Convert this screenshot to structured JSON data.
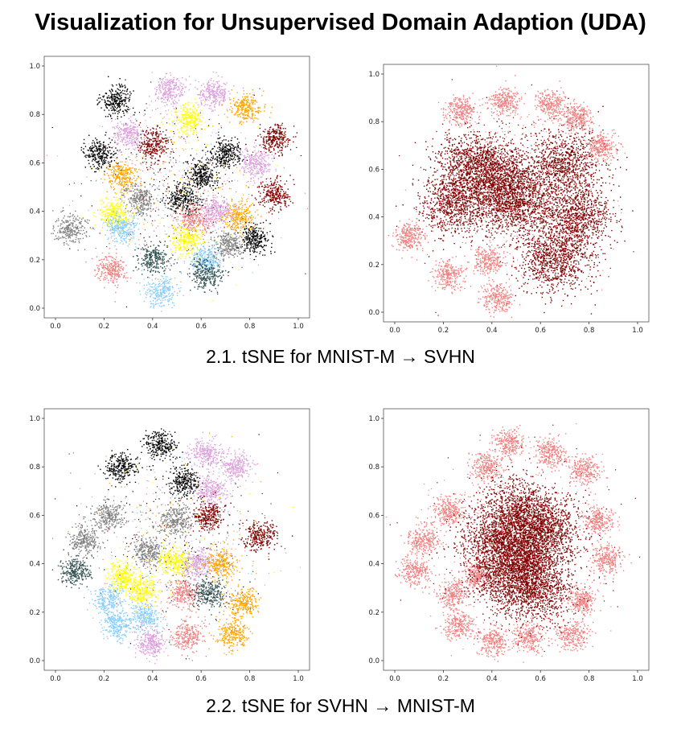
{
  "title": "Visualization for Unsupervised Domain Adaption (UDA)",
  "sections": [
    {
      "caption": "2.1. tSNE for MNIST-M → SVHN"
    },
    {
      "caption": "2.2. tSNE for SVHN → MNIST-M"
    }
  ],
  "chart_data": [
    {
      "type": "scatter",
      "panel": "2.1 left (class-colored)",
      "xlim": [
        0,
        1
      ],
      "ylim": [
        0,
        1
      ],
      "xticks": [
        "0.0",
        "0.2",
        "0.4",
        "0.6",
        "0.8",
        "1.0"
      ],
      "yticks": [
        "0.0",
        "0.2",
        "0.4",
        "0.6",
        "0.8",
        "1.0"
      ],
      "grid": false,
      "point_colors": [
        "#000000",
        "#dda0dd",
        "#ffff00",
        "#ffa500",
        "#800000",
        "#808080",
        "#87cefa",
        "#f08080",
        "#2f4f4f"
      ],
      "clusters": [
        {
          "x": 0.25,
          "y": 0.86,
          "color": "#000000"
        },
        {
          "x": 0.47,
          "y": 0.9,
          "color": "#dda0dd"
        },
        {
          "x": 0.65,
          "y": 0.89,
          "color": "#dda0dd"
        },
        {
          "x": 0.78,
          "y": 0.83,
          "color": "#ffa500"
        },
        {
          "x": 0.55,
          "y": 0.78,
          "color": "#ffff00"
        },
        {
          "x": 0.9,
          "y": 0.7,
          "color": "#800000"
        },
        {
          "x": 0.4,
          "y": 0.68,
          "color": "#800000"
        },
        {
          "x": 0.18,
          "y": 0.64,
          "color": "#000000"
        },
        {
          "x": 0.3,
          "y": 0.72,
          "color": "#dda0dd"
        },
        {
          "x": 0.7,
          "y": 0.64,
          "color": "#000000"
        },
        {
          "x": 0.82,
          "y": 0.6,
          "color": "#dda0dd"
        },
        {
          "x": 0.27,
          "y": 0.55,
          "color": "#ffa500"
        },
        {
          "x": 0.9,
          "y": 0.47,
          "color": "#800000"
        },
        {
          "x": 0.6,
          "y": 0.55,
          "color": "#000000"
        },
        {
          "x": 0.75,
          "y": 0.38,
          "color": "#ffa500"
        },
        {
          "x": 0.52,
          "y": 0.45,
          "color": "#000000"
        },
        {
          "x": 0.35,
          "y": 0.45,
          "color": "#808080"
        },
        {
          "x": 0.24,
          "y": 0.39,
          "color": "#ffff00"
        },
        {
          "x": 0.57,
          "y": 0.37,
          "color": "#f08080"
        },
        {
          "x": 0.66,
          "y": 0.4,
          "color": "#dda0dd"
        },
        {
          "x": 0.06,
          "y": 0.33,
          "color": "#808080"
        },
        {
          "x": 0.27,
          "y": 0.33,
          "color": "#87cefa"
        },
        {
          "x": 0.54,
          "y": 0.28,
          "color": "#ffff00"
        },
        {
          "x": 0.71,
          "y": 0.26,
          "color": "#808080"
        },
        {
          "x": 0.4,
          "y": 0.21,
          "color": "#2f4f4f"
        },
        {
          "x": 0.62,
          "y": 0.2,
          "color": "#87cefa"
        },
        {
          "x": 0.82,
          "y": 0.29,
          "color": "#000000"
        },
        {
          "x": 0.23,
          "y": 0.16,
          "color": "#f08080"
        },
        {
          "x": 0.62,
          "y": 0.14,
          "color": "#2f4f4f"
        },
        {
          "x": 0.43,
          "y": 0.07,
          "color": "#87cefa"
        }
      ]
    },
    {
      "type": "scatter",
      "panel": "2.1 right (domain-colored)",
      "xlim": [
        0,
        1
      ],
      "ylim": [
        0,
        1
      ],
      "xticks": [
        "0.0",
        "0.2",
        "0.4",
        "0.6",
        "0.8",
        "1.0"
      ],
      "yticks": [
        "0.0",
        "0.2",
        "0.4",
        "0.6",
        "0.8",
        "1.0"
      ],
      "grid": false,
      "point_colors": [
        "#800000",
        "#f08080"
      ],
      "clusters": [
        {
          "x": 0.5,
          "y": 0.46,
          "color": "#800000"
        },
        {
          "x": 0.32,
          "y": 0.62,
          "color": "#800000"
        },
        {
          "x": 0.7,
          "y": 0.62,
          "color": "#800000"
        },
        {
          "x": 0.25,
          "y": 0.46,
          "color": "#800000"
        },
        {
          "x": 0.75,
          "y": 0.4,
          "color": "#800000"
        },
        {
          "x": 0.65,
          "y": 0.22,
          "color": "#800000"
        },
        {
          "x": 0.44,
          "y": 0.56,
          "color": "#800000"
        },
        {
          "x": 0.27,
          "y": 0.85,
          "color": "#f08080"
        },
        {
          "x": 0.45,
          "y": 0.89,
          "color": "#f08080"
        },
        {
          "x": 0.64,
          "y": 0.87,
          "color": "#f08080"
        },
        {
          "x": 0.75,
          "y": 0.82,
          "color": "#f08080"
        },
        {
          "x": 0.85,
          "y": 0.69,
          "color": "#f08080"
        },
        {
          "x": 0.06,
          "y": 0.32,
          "color": "#f08080"
        },
        {
          "x": 0.22,
          "y": 0.16,
          "color": "#f08080"
        },
        {
          "x": 0.38,
          "y": 0.22,
          "color": "#f08080"
        },
        {
          "x": 0.42,
          "y": 0.06,
          "color": "#f08080"
        }
      ]
    },
    {
      "type": "scatter",
      "panel": "2.2 left (class-colored)",
      "xlim": [
        0,
        1
      ],
      "ylim": [
        0,
        1
      ],
      "xticks": [
        "0.0",
        "0.2",
        "0.4",
        "0.6",
        "0.8",
        "1.0"
      ],
      "yticks": [
        "0.0",
        "0.2",
        "0.4",
        "0.6",
        "0.8",
        "1.0"
      ],
      "grid": false,
      "point_colors": [
        "#000000",
        "#dda0dd",
        "#ffff00",
        "#ffa500",
        "#800000",
        "#808080",
        "#87cefa",
        "#f08080",
        "#2f4f4f"
      ],
      "clusters": [
        {
          "x": 0.27,
          "y": 0.8,
          "color": "#000000"
        },
        {
          "x": 0.43,
          "y": 0.89,
          "color": "#000000"
        },
        {
          "x": 0.62,
          "y": 0.86,
          "color": "#dda0dd"
        },
        {
          "x": 0.74,
          "y": 0.8,
          "color": "#dda0dd"
        },
        {
          "x": 0.53,
          "y": 0.74,
          "color": "#000000"
        },
        {
          "x": 0.64,
          "y": 0.7,
          "color": "#dda0dd"
        },
        {
          "x": 0.84,
          "y": 0.52,
          "color": "#800000"
        },
        {
          "x": 0.22,
          "y": 0.6,
          "color": "#808080"
        },
        {
          "x": 0.12,
          "y": 0.5,
          "color": "#808080"
        },
        {
          "x": 0.49,
          "y": 0.58,
          "color": "#808080"
        },
        {
          "x": 0.63,
          "y": 0.6,
          "color": "#800000"
        },
        {
          "x": 0.38,
          "y": 0.45,
          "color": "#808080"
        },
        {
          "x": 0.08,
          "y": 0.37,
          "color": "#2f4f4f"
        },
        {
          "x": 0.49,
          "y": 0.41,
          "color": "#ffff00"
        },
        {
          "x": 0.59,
          "y": 0.4,
          "color": "#dda0dd"
        },
        {
          "x": 0.68,
          "y": 0.4,
          "color": "#ffa500"
        },
        {
          "x": 0.27,
          "y": 0.35,
          "color": "#ffff00"
        },
        {
          "x": 0.35,
          "y": 0.29,
          "color": "#ffff00"
        },
        {
          "x": 0.53,
          "y": 0.28,
          "color": "#f08080"
        },
        {
          "x": 0.63,
          "y": 0.28,
          "color": "#2f4f4f"
        },
        {
          "x": 0.22,
          "y": 0.25,
          "color": "#87cefa"
        },
        {
          "x": 0.37,
          "y": 0.18,
          "color": "#87cefa"
        },
        {
          "x": 0.77,
          "y": 0.24,
          "color": "#ffa500"
        },
        {
          "x": 0.25,
          "y": 0.15,
          "color": "#87cefa"
        },
        {
          "x": 0.39,
          "y": 0.07,
          "color": "#dda0dd"
        },
        {
          "x": 0.54,
          "y": 0.1,
          "color": "#f08080"
        },
        {
          "x": 0.73,
          "y": 0.11,
          "color": "#ffa500"
        }
      ]
    },
    {
      "type": "scatter",
      "panel": "2.2 right (domain-colored)",
      "xlim": [
        0,
        1
      ],
      "ylim": [
        0,
        1
      ],
      "xticks": [
        "0.0",
        "0.2",
        "0.4",
        "0.6",
        "0.8",
        "1.0"
      ],
      "yticks": [
        "0.0",
        "0.2",
        "0.4",
        "0.6",
        "0.8",
        "1.0"
      ],
      "grid": false,
      "point_colors": [
        "#f08080",
        "#800000"
      ],
      "clusters": [
        {
          "x": 0.37,
          "y": 0.8,
          "color": "#f08080"
        },
        {
          "x": 0.47,
          "y": 0.9,
          "color": "#f08080"
        },
        {
          "x": 0.64,
          "y": 0.86,
          "color": "#f08080"
        },
        {
          "x": 0.78,
          "y": 0.79,
          "color": "#f08080"
        },
        {
          "x": 0.22,
          "y": 0.62,
          "color": "#f08080"
        },
        {
          "x": 0.12,
          "y": 0.5,
          "color": "#f08080"
        },
        {
          "x": 0.83,
          "y": 0.58,
          "color": "#f08080"
        },
        {
          "x": 0.87,
          "y": 0.42,
          "color": "#f08080"
        },
        {
          "x": 0.08,
          "y": 0.37,
          "color": "#f08080"
        },
        {
          "x": 0.24,
          "y": 0.28,
          "color": "#f08080"
        },
        {
          "x": 0.77,
          "y": 0.25,
          "color": "#f08080"
        },
        {
          "x": 0.26,
          "y": 0.15,
          "color": "#f08080"
        },
        {
          "x": 0.4,
          "y": 0.08,
          "color": "#f08080"
        },
        {
          "x": 0.55,
          "y": 0.1,
          "color": "#f08080"
        },
        {
          "x": 0.73,
          "y": 0.11,
          "color": "#f08080"
        },
        {
          "x": 0.34,
          "y": 0.35,
          "color": "#f08080"
        },
        {
          "x": 0.5,
          "y": 0.62,
          "color": "#800000"
        },
        {
          "x": 0.61,
          "y": 0.55,
          "color": "#800000"
        },
        {
          "x": 0.42,
          "y": 0.49,
          "color": "#800000"
        },
        {
          "x": 0.55,
          "y": 0.44,
          "color": "#800000"
        },
        {
          "x": 0.47,
          "y": 0.36,
          "color": "#800000"
        },
        {
          "x": 0.58,
          "y": 0.29,
          "color": "#800000"
        }
      ]
    }
  ]
}
